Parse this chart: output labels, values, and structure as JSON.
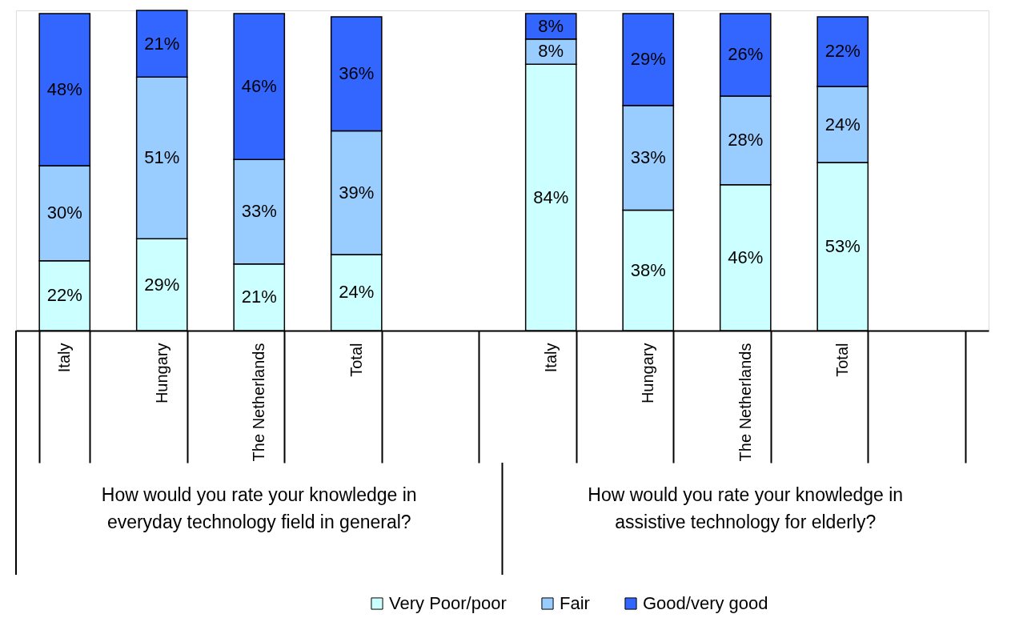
{
  "chart_data": {
    "type": "bar",
    "stacked": true,
    "categories": [
      "Italy",
      "Hungary",
      "The Netherlands",
      "Total",
      null,
      "Italy",
      "Hungary",
      "The Netherlands",
      "Total",
      null
    ],
    "series": [
      {
        "name": "Very Poor/poor",
        "color": "#ccffff",
        "values": [
          22,
          29,
          21,
          24,
          null,
          84,
          38,
          46,
          53,
          null
        ],
        "value_labels": [
          "22%",
          "29%",
          "21%",
          "24%",
          null,
          "84%",
          "38%",
          "46%",
          "53%",
          null
        ]
      },
      {
        "name": "Fair",
        "color": "#99ccff",
        "values": [
          30,
          51,
          33,
          39,
          null,
          8,
          33,
          28,
          24,
          null
        ],
        "value_labels": [
          "30%",
          "51%",
          "33%",
          "39%",
          null,
          "8%",
          "33%",
          "28%",
          "24%",
          null
        ]
      },
      {
        "name": "Good/very good",
        "color": "#3366ff",
        "values": [
          48,
          21,
          46,
          36,
          null,
          8,
          29,
          26,
          22,
          null
        ],
        "value_labels": [
          "48%",
          "21%",
          "46%",
          "36%",
          null,
          "8%",
          "29%",
          "26%",
          "22%",
          null
        ]
      }
    ],
    "annotations": [
      "How would you rate your knowledge in everyday technology field in general?",
      "How would you rate your knowledge in assistive technology for elderly?"
    ],
    "legend": "bottom"
  }
}
